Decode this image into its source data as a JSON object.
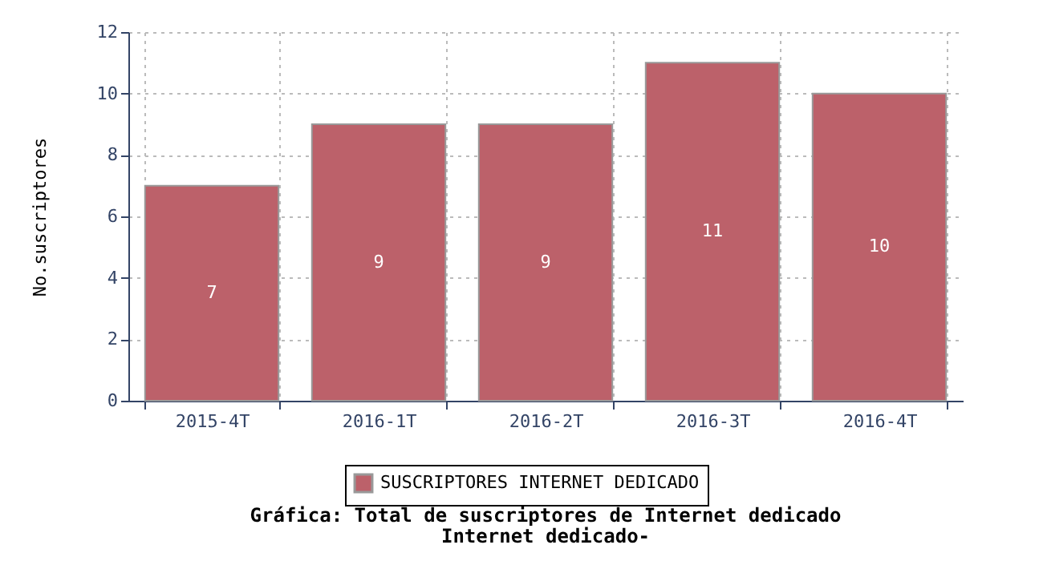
{
  "chart_data": {
    "type": "bar",
    "title": "Gráfica: Total de suscriptores de Internet dedicado",
    "subtitle": "Internet dedicado-",
    "ylabel": "No.suscriptores",
    "categories": [
      "2015-4T",
      "2016-1T",
      "2016-2T",
      "2016-3T",
      "2016-4T"
    ],
    "series": [
      {
        "name": "SUSCRIPTORES INTERNET DEDICADO",
        "color": "#bc616a",
        "values": [
          7,
          9,
          9,
          11,
          10
        ]
      }
    ],
    "ylim": [
      0,
      12
    ],
    "yticks": [
      0,
      2,
      4,
      6,
      8,
      10,
      12
    ],
    "grid": true,
    "legend": "bottom",
    "data_labels": true
  }
}
